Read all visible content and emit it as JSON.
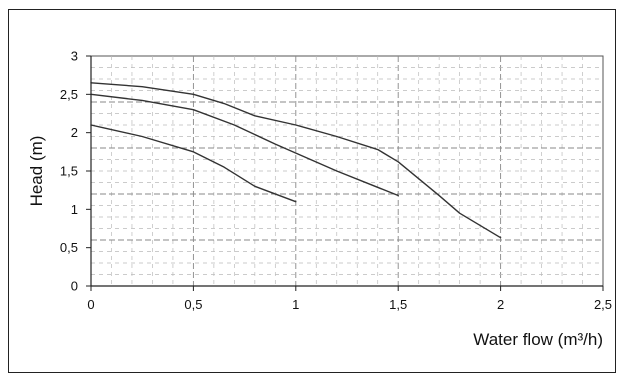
{
  "chart_data": {
    "type": "line",
    "title": "",
    "xlabel": "Water flow (m³/h)",
    "ylabel": "Head (m)",
    "xlim": [
      0,
      2.5
    ],
    "ylim": [
      0,
      3
    ],
    "x_ticks": [
      0,
      0.5,
      1,
      1.5,
      2,
      2.5
    ],
    "x_tick_labels": [
      "0",
      "0,5",
      "1",
      "1,5",
      "2",
      "2,5"
    ],
    "y_ticks": [
      0,
      0.5,
      1,
      1.5,
      2,
      2.5,
      3
    ],
    "y_tick_labels": [
      "0",
      "0,5",
      "1",
      "1,5",
      "2",
      "2,5",
      "3"
    ],
    "grid": true,
    "grid_style": "dashed",
    "series": [
      {
        "x": [
          0,
          0.25,
          0.5,
          0.65,
          0.8,
          1.0
        ],
        "y": [
          2.1,
          1.95,
          1.75,
          1.55,
          1.3,
          1.1
        ]
      },
      {
        "x": [
          0,
          0.25,
          0.5,
          0.7,
          0.9,
          1.2,
          1.5
        ],
        "y": [
          2.5,
          2.42,
          2.3,
          2.1,
          1.85,
          1.5,
          1.18
        ]
      },
      {
        "x": [
          0,
          0.25,
          0.5,
          0.65,
          0.8,
          1.0,
          1.2,
          1.4,
          1.5,
          1.6,
          1.7,
          1.8,
          2.0
        ],
        "y": [
          2.65,
          2.6,
          2.5,
          2.38,
          2.22,
          2.1,
          1.95,
          1.78,
          1.62,
          1.4,
          1.18,
          0.95,
          0.63
        ]
      }
    ]
  }
}
